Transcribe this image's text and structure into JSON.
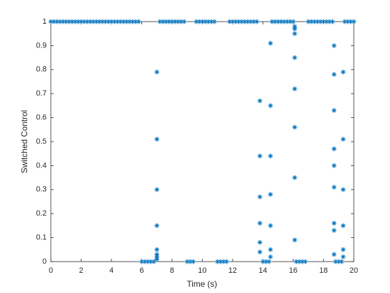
{
  "chart_data": {
    "type": "scatter",
    "xlabel": "Time (s)",
    "ylabel": "Switched Control",
    "color": "#0072bd",
    "marker": "asterisk",
    "x": [
      0,
      0.2,
      0.4,
      0.6,
      0.8,
      1,
      1.2,
      1.4,
      1.6,
      1.8,
      2,
      2.2,
      2.4,
      2.6,
      2.8,
      3,
      3.2,
      3.4,
      3.6,
      3.8,
      4,
      4.2,
      4.4,
      4.6,
      4.8,
      5,
      5.2,
      5.4,
      5.6,
      5.8,
      6,
      6.2,
      6.4,
      6.6,
      6.8,
      7,
      7,
      7,
      7,
      7,
      7,
      7,
      7,
      7.2,
      7.4,
      7.6,
      7.8,
      8,
      8.2,
      8.4,
      8.6,
      8.8,
      9,
      9.2,
      9.4,
      9.6,
      9.8,
      10,
      10.2,
      10.4,
      10.6,
      10.8,
      11,
      11.2,
      11.4,
      11.6,
      11.8,
      12,
      12.2,
      12.4,
      12.6,
      12.8,
      13,
      13.2,
      13.4,
      13.6,
      13.8,
      13.8,
      13.8,
      13.8,
      13.8,
      13.8,
      14,
      14.2,
      14.4,
      14.5,
      14.5,
      14.5,
      14.5,
      14.5,
      14.5,
      14.5,
      14.6,
      14.8,
      15,
      15.2,
      15.4,
      15.6,
      15.8,
      16,
      16.1,
      16.1,
      16.1,
      16.1,
      16.1,
      16.1,
      16.1,
      16.1,
      16.2,
      16.4,
      16.6,
      16.8,
      17,
      17.2,
      17.4,
      17.6,
      17.8,
      18,
      18.2,
      18.4,
      18.6,
      18.7,
      18.7,
      18.7,
      18.7,
      18.7,
      18.7,
      18.7,
      18.7,
      18.7,
      18.8,
      19,
      19.2,
      19.3,
      19.3,
      19.3,
      19.3,
      19.3,
      19.3,
      19.4,
      19.6,
      19.8,
      20
    ],
    "values": [
      1,
      1,
      1,
      1,
      1,
      1,
      1,
      1,
      1,
      1,
      1,
      1,
      1,
      1,
      1,
      1,
      1,
      1,
      1,
      1,
      1,
      1,
      1,
      1,
      1,
      1,
      1,
      1,
      1,
      1,
      0,
      0,
      0,
      0,
      0,
      0.01,
      0.02,
      0.03,
      0.05,
      0.15,
      0.3,
      0.51,
      0.79,
      1,
      1,
      1,
      1,
      1,
      1,
      1,
      1,
      1,
      0,
      0,
      0,
      1,
      1,
      1,
      1,
      1,
      1,
      1,
      0,
      0,
      0,
      0,
      1,
      1,
      1,
      1,
      1,
      1,
      1,
      1,
      1,
      1,
      0.04,
      0.08,
      0.16,
      0.27,
      0.44,
      0.67,
      0,
      0,
      0,
      0.02,
      0.05,
      0.15,
      0.28,
      0.44,
      0.65,
      0.91,
      1,
      1,
      1,
      1,
      1,
      1,
      1,
      1,
      0.09,
      0.35,
      0.56,
      0.72,
      0.85,
      0.95,
      0.97,
      0.98,
      0,
      0,
      0,
      0,
      1,
      1,
      1,
      1,
      1,
      1,
      1,
      1,
      1,
      0.03,
      0.13,
      0.16,
      0.31,
      0.4,
      0.47,
      0.63,
      0.78,
      0.9,
      0,
      0,
      0,
      0.02,
      0.05,
      0.15,
      0.3,
      0.51,
      0.79,
      1,
      1,
      1,
      1
    ],
    "xlim": [
      0,
      20
    ],
    "xticks": [
      0,
      2,
      4,
      6,
      8,
      10,
      12,
      14,
      16,
      18,
      20
    ],
    "ylim": [
      0,
      1
    ],
    "yticks": [
      0,
      0.1,
      0.2,
      0.3,
      0.4,
      0.5,
      0.6,
      0.7,
      0.8,
      0.9,
      1
    ]
  }
}
